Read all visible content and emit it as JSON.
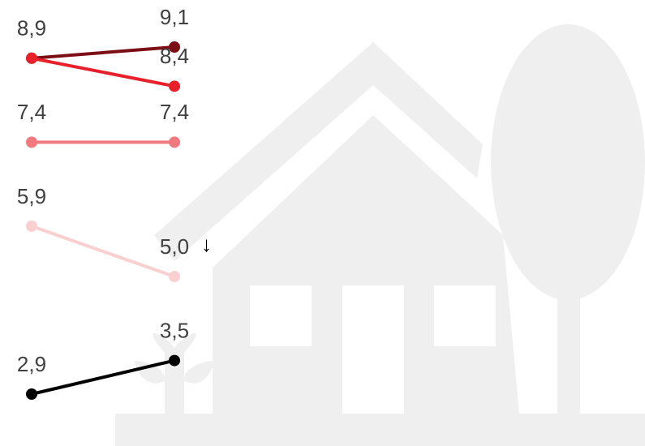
{
  "chart_data": {
    "type": "slope",
    "categories": [
      null,
      null
    ],
    "ylim": [
      2.9,
      9.1
    ],
    "series": [
      {
        "color": "#7b0e14",
        "values": [
          8.9,
          9.1
        ],
        "value_labels": [
          "8,9",
          "9,1"
        ]
      },
      {
        "color": "#e8202a",
        "values": [
          8.9,
          8.4
        ],
        "value_labels": [
          null,
          "8,4"
        ]
      },
      {
        "color": "#f07a7e",
        "values": [
          7.4,
          7.4
        ],
        "value_labels": [
          "7,4",
          "7,4"
        ]
      },
      {
        "color": "#f9cfcf",
        "values": [
          5.9,
          5.0
        ],
        "value_labels": [
          "5,9",
          "5,0"
        ],
        "annotation": "↓"
      },
      {
        "color": "#000000",
        "values": [
          2.9,
          3.5
        ],
        "value_labels": [
          "2,9",
          "3,5"
        ]
      }
    ]
  }
}
